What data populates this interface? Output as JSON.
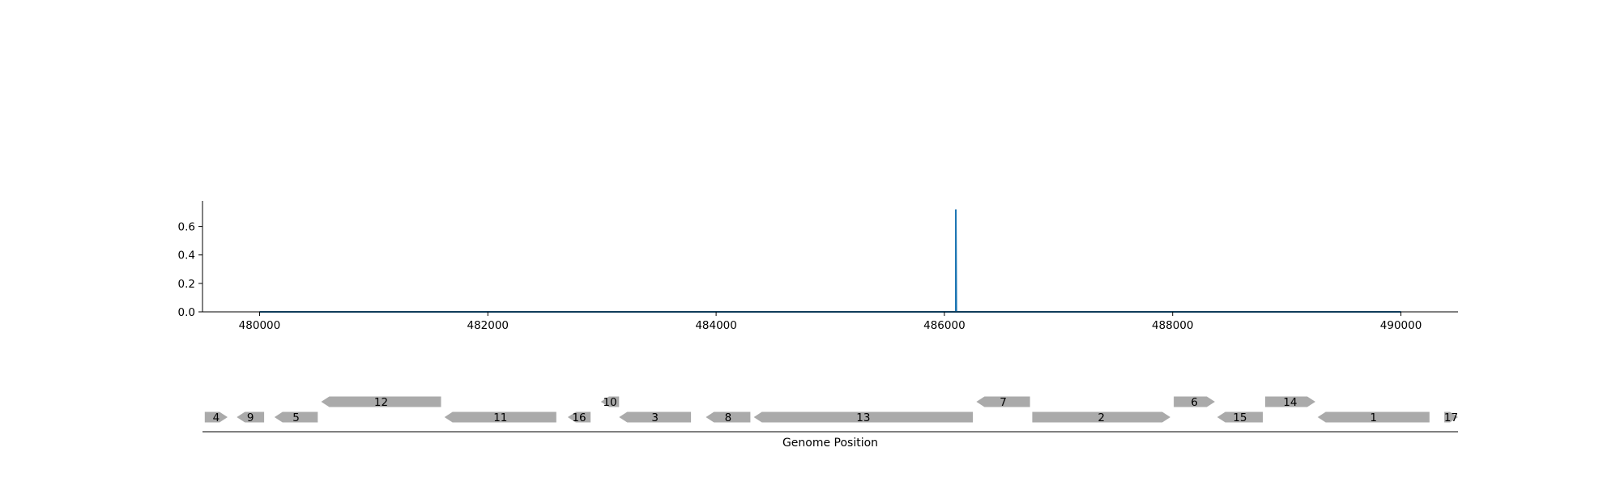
{
  "chart_data": [
    {
      "type": "line",
      "title": "",
      "xlabel": "",
      "ylabel": "",
      "xlim": [
        479500,
        490500
      ],
      "ylim": [
        0,
        0.78
      ],
      "x_ticks": [
        480000,
        482000,
        484000,
        486000,
        488000,
        490000
      ],
      "x_tick_labels": [
        "480000",
        "482000",
        "484000",
        "486000",
        "488000",
        "490000"
      ],
      "y_ticks": [
        0.0,
        0.2,
        0.4,
        0.6
      ],
      "y_tick_labels": [
        "0.0",
        "0.2",
        "0.4",
        "0.6"
      ],
      "grid": false,
      "series": [
        {
          "color": "#1f77b4",
          "x": [
            480000,
            486095,
            486100,
            486100,
            486105,
            490000
          ],
          "y": [
            0.0,
            0.0,
            0.0,
            0.72,
            0.0,
            0.0
          ]
        }
      ]
    },
    {
      "type": "gene-track",
      "xlabel": "Genome Position",
      "xlim": [
        479500,
        490500
      ],
      "color": "#aaaaaa",
      "genes": [
        {
          "label": "4",
          "start": 479520,
          "end": 479720,
          "strand": "+",
          "row": 0
        },
        {
          "label": "9",
          "start": 479800,
          "end": 480040,
          "strand": "-",
          "row": 0
        },
        {
          "label": "5",
          "start": 480130,
          "end": 480510,
          "strand": "-",
          "row": 0
        },
        {
          "label": "12",
          "start": 480540,
          "end": 481590,
          "strand": "-",
          "row": 1
        },
        {
          "label": "11",
          "start": 481620,
          "end": 482600,
          "strand": "-",
          "row": 0
        },
        {
          "label": "16",
          "start": 482700,
          "end": 482900,
          "strand": "-",
          "row": 0
        },
        {
          "label": "10",
          "start": 482990,
          "end": 483150,
          "strand": "-",
          "row": 1
        },
        {
          "label": "3",
          "start": 483150,
          "end": 483780,
          "strand": "-",
          "row": 0
        },
        {
          "label": "8",
          "start": 483910,
          "end": 484300,
          "strand": "-",
          "row": 0
        },
        {
          "label": "13",
          "start": 484330,
          "end": 486250,
          "strand": "-",
          "row": 0
        },
        {
          "label": "7",
          "start": 486280,
          "end": 486750,
          "strand": "-",
          "row": 1
        },
        {
          "label": "2",
          "start": 486770,
          "end": 487980,
          "strand": "+",
          "row": 0
        },
        {
          "label": "6",
          "start": 488010,
          "end": 488370,
          "strand": "+",
          "row": 1
        },
        {
          "label": "15",
          "start": 488390,
          "end": 488790,
          "strand": "-",
          "row": 0
        },
        {
          "label": "14",
          "start": 488810,
          "end": 489250,
          "strand": "+",
          "row": 1
        },
        {
          "label": "1",
          "start": 489270,
          "end": 490250,
          "strand": "-",
          "row": 0
        },
        {
          "label": "17",
          "start": 490380,
          "end": 490500,
          "strand": "+",
          "row": 0
        }
      ]
    }
  ]
}
